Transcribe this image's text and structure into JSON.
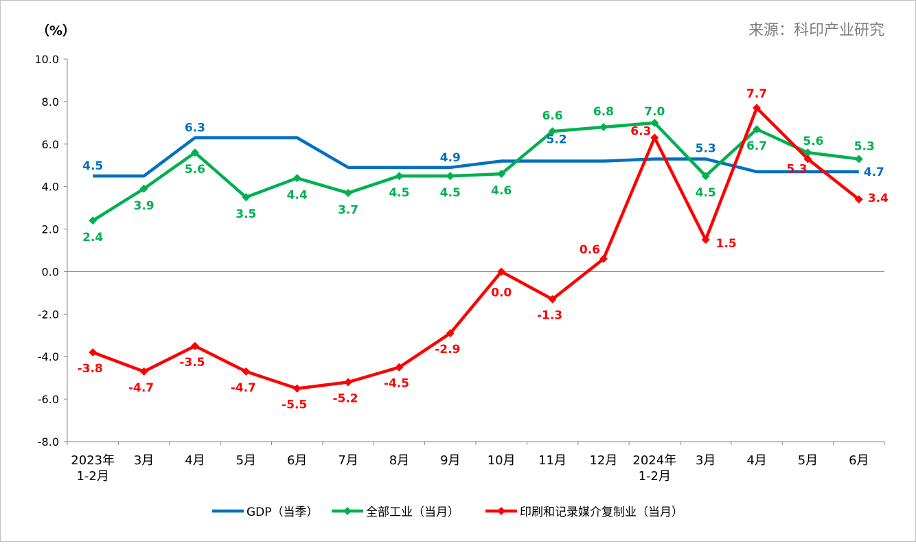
{
  "chart_data": {
    "type": "line",
    "unit_label": "（%）",
    "source": "来源：科印产业研究",
    "ylim": [
      -8,
      10
    ],
    "yticks": [
      "10.0",
      "8.0",
      "6.0",
      "4.0",
      "2.0",
      "0.0",
      "-2.0",
      "-4.0",
      "-6.0",
      "-8.0"
    ],
    "categories": [
      [
        "2023年",
        "1-2月"
      ],
      [
        "3月"
      ],
      [
        "4月"
      ],
      [
        "5月"
      ],
      [
        "6月"
      ],
      [
        "7月"
      ],
      [
        "8月"
      ],
      [
        "9月"
      ],
      [
        "10月"
      ],
      [
        "11月"
      ],
      [
        "12月"
      ],
      [
        "2024年",
        "1-2月"
      ],
      [
        "3月"
      ],
      [
        "4月"
      ],
      [
        "5月"
      ],
      [
        "6月"
      ]
    ],
    "legend_position": "bottom",
    "grid": false,
    "series": [
      {
        "name": "GDP（当季）",
        "color": "#0070c0",
        "marker": "none",
        "values": [
          4.5,
          4.5,
          6.3,
          6.3,
          6.3,
          4.9,
          4.9,
          4.9,
          5.2,
          5.2,
          5.2,
          5.3,
          5.3,
          4.7,
          4.7,
          4.7
        ],
        "labels": [
          "4.5",
          null,
          "6.3",
          null,
          null,
          null,
          null,
          "4.9",
          null,
          "5.2",
          null,
          null,
          "5.3",
          null,
          null,
          "4.7"
        ]
      },
      {
        "name": "全部工业（当月）",
        "color": "#00b050",
        "marker": "diamond",
        "values": [
          2.4,
          3.9,
          5.6,
          3.5,
          4.4,
          3.7,
          4.5,
          4.5,
          4.6,
          6.6,
          6.8,
          7.0,
          4.5,
          6.7,
          5.6,
          5.3
        ],
        "labels": [
          "2.4",
          "3.9",
          "5.6",
          "3.5",
          "4.4",
          "3.7",
          "4.5",
          "4.5",
          "4.6",
          "6.6",
          "6.8",
          "7.0",
          "4.5",
          "6.7",
          "5.6",
          "5.3"
        ]
      },
      {
        "name": "印刷和记录媒介复制业（当月）",
        "color": "#ff0000",
        "marker": "diamond",
        "values": [
          -3.8,
          -4.7,
          -3.5,
          -4.7,
          -5.5,
          -5.2,
          -4.5,
          -2.9,
          0.0,
          -1.3,
          0.6,
          6.3,
          1.5,
          7.7,
          5.3,
          3.4
        ],
        "labels": [
          "-3.8",
          "-4.7",
          "-3.5",
          "-4.7",
          "-5.5",
          "-5.2",
          "-4.5",
          "-2.9",
          "0.0",
          "-1.3",
          "0.6",
          "6.3",
          "1.5",
          "7.7",
          "5.3",
          "3.4"
        ]
      }
    ]
  }
}
